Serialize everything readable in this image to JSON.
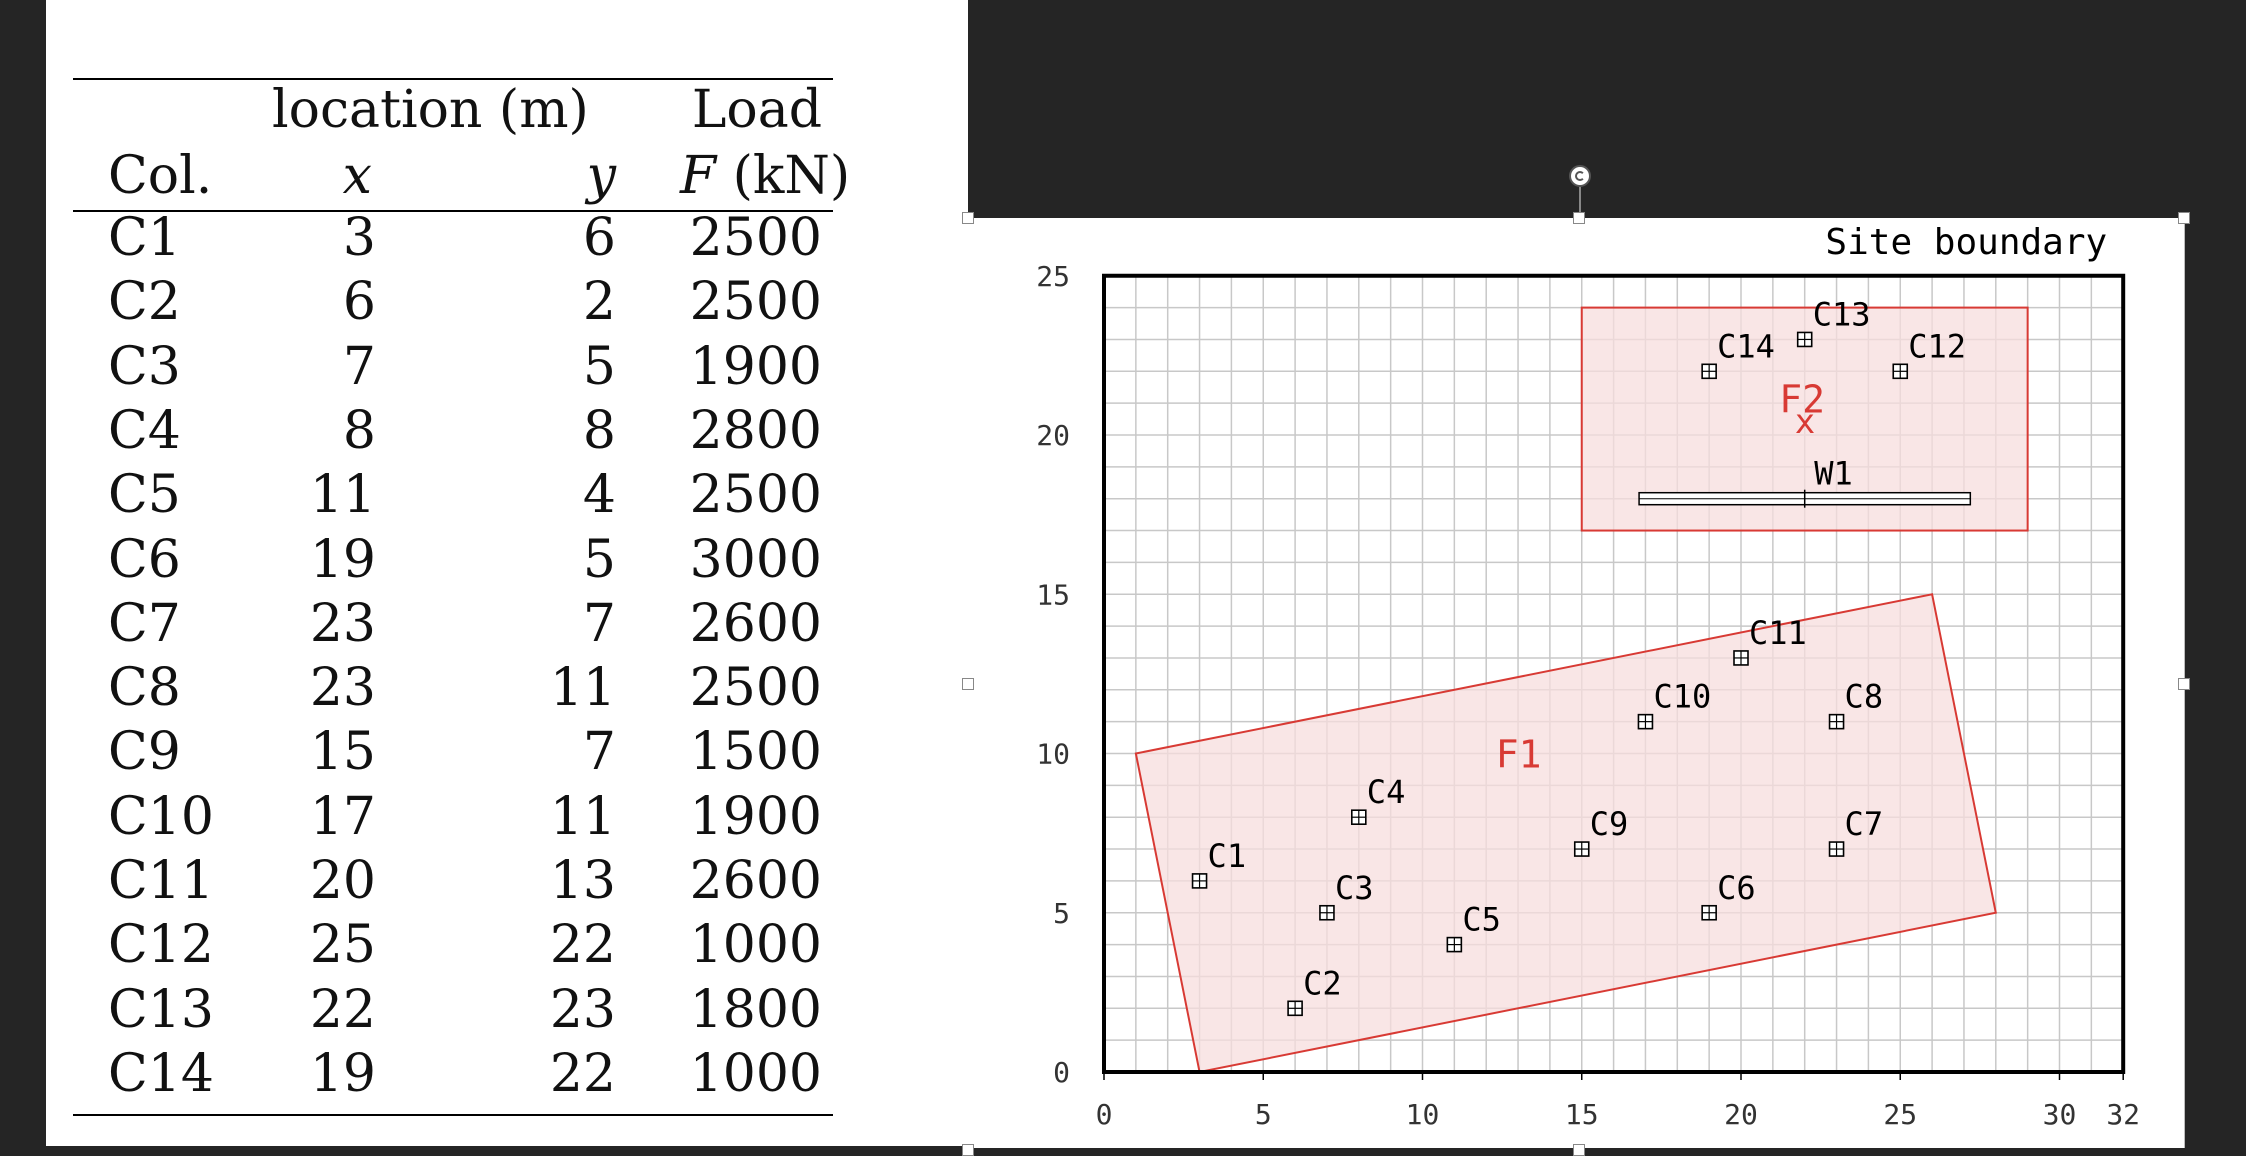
{
  "table": {
    "headers": {
      "location": "location (m)",
      "load": "Load",
      "col": "Col.",
      "x": "x",
      "y": "y",
      "f_symbol": "F",
      "f_unit": "(kN)"
    },
    "rows": [
      {
        "col": "C1",
        "x": "3",
        "y": "6",
        "f": "2500"
      },
      {
        "col": "C2",
        "x": "6",
        "y": "2",
        "f": "2500"
      },
      {
        "col": "C3",
        "x": "7",
        "y": "5",
        "f": "1900"
      },
      {
        "col": "C4",
        "x": "8",
        "y": "8",
        "f": "2800"
      },
      {
        "col": "C5",
        "x": "11",
        "y": "4",
        "f": "2500"
      },
      {
        "col": "C6",
        "x": "19",
        "y": "5",
        "f": "3000"
      },
      {
        "col": "C7",
        "x": "23",
        "y": "7",
        "f": "2600"
      },
      {
        "col": "C8",
        "x": "23",
        "y": "11",
        "f": "2500"
      },
      {
        "col": "C9",
        "x": "15",
        "y": "7",
        "f": "1500"
      },
      {
        "col": "C10",
        "x": "17",
        "y": "11",
        "f": "1900"
      },
      {
        "col": "C11",
        "x": "20",
        "y": "13",
        "f": "2600"
      },
      {
        "col": "C12",
        "x": "25",
        "y": "22",
        "f": "1000"
      },
      {
        "col": "C13",
        "x": "22",
        "y": "23",
        "f": "1800"
      },
      {
        "col": "C14",
        "x": "19",
        "y": "22",
        "f": "1000"
      }
    ]
  },
  "figure": {
    "site_boundary_label": "Site boundary",
    "x_ticks": [
      "0",
      "5",
      "10",
      "15",
      "20",
      "25",
      "30",
      "32"
    ],
    "x_tick_values": [
      0,
      5,
      10,
      15,
      20,
      25,
      30,
      32
    ],
    "y_ticks": [
      "0",
      "5",
      "10",
      "15",
      "20",
      "25"
    ],
    "y_tick_values": [
      0,
      5,
      10,
      15,
      20,
      25
    ],
    "x_range": [
      0,
      32
    ],
    "y_range": [
      0,
      25
    ],
    "footing1": {
      "label": "F1",
      "corners": [
        [
          1,
          10
        ],
        [
          26,
          15
        ],
        [
          28,
          5
        ],
        [
          3,
          0
        ]
      ]
    },
    "footing2": {
      "label": "F2",
      "x_range": [
        15,
        29
      ],
      "y_range": [
        17,
        24
      ],
      "centroid_marker": "x",
      "centroid": [
        22,
        20.5
      ]
    },
    "wall": {
      "label": "W1",
      "x_range": [
        16.8,
        27.2
      ],
      "y": 18
    },
    "columns": [
      {
        "label": "C1",
        "x": 3,
        "y": 6
      },
      {
        "label": "C2",
        "x": 6,
        "y": 2
      },
      {
        "label": "C3",
        "x": 7,
        "y": 5
      },
      {
        "label": "C4",
        "x": 8,
        "y": 8
      },
      {
        "label": "C5",
        "x": 11,
        "y": 4
      },
      {
        "label": "C6",
        "x": 19,
        "y": 5
      },
      {
        "label": "C7",
        "x": 23,
        "y": 7
      },
      {
        "label": "C8",
        "x": 23,
        "y": 11
      },
      {
        "label": "C9",
        "x": 15,
        "y": 7
      },
      {
        "label": "C10",
        "x": 17,
        "y": 11
      },
      {
        "label": "C11",
        "x": 20,
        "y": 13
      },
      {
        "label": "C12",
        "x": 25,
        "y": 22
      },
      {
        "label": "C13",
        "x": 22,
        "y": 23
      },
      {
        "label": "C14",
        "x": 19,
        "y": 22
      }
    ],
    "colors": {
      "footing_stroke": "#d83a34",
      "footing_fill": "#f7dede",
      "grid": "#c8c8c8",
      "boundary": "#000000"
    }
  }
}
